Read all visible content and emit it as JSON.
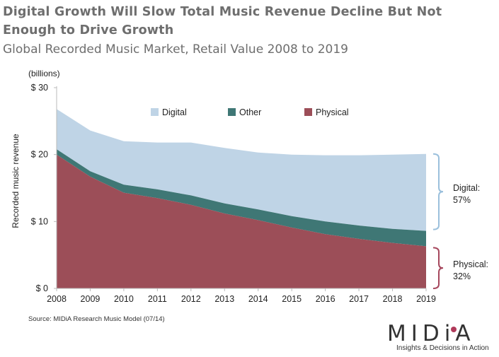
{
  "page": {
    "title": "Digital Growth Will Slow Total Music Revenue Decline But Not Enough to Drive Growth",
    "subtitle": "Global Recorded Music Market, Retail Value 2008 to 2019",
    "source": "Source: MIDiA Research Music Model (07/14)",
    "logo": "MIDiA",
    "tagline": "Insights & Decisions in Action"
  },
  "colors": {
    "digital": "#bfd4e6",
    "other": "#3f7775",
    "physical": "#9c4e58",
    "brace": "#9bc0dc",
    "brace_physical": "#a6475d",
    "logo_accent": "#b03a5a"
  },
  "annotations": {
    "digital_share": [
      "Digital:",
      "57%"
    ],
    "physical_share": [
      "Physical:",
      "32%"
    ]
  },
  "chart_data": {
    "type": "area",
    "stacked": true,
    "title": "Global Recorded Music Market, Retail Value 2008 to 2019",
    "ylabel": "Recorded music revenue",
    "yunit": "(billions)",
    "xlabel": "",
    "ylim": [
      0,
      30
    ],
    "yticks": [
      0,
      10,
      20,
      30
    ],
    "ytick_labels": [
      "$ 0",
      "$ 10",
      "$ 20",
      "$ 30"
    ],
    "legend_position": "top",
    "categories": [
      "2008",
      "2009",
      "2010",
      "2011",
      "2012",
      "2013",
      "2014",
      "2015",
      "2016",
      "2017",
      "2018",
      "2019"
    ],
    "series": [
      {
        "name": "Physical",
        "values": [
          20.0,
          16.7,
          14.3,
          13.5,
          12.5,
          11.2,
          10.2,
          9.1,
          8.1,
          7.4,
          6.8,
          6.3
        ]
      },
      {
        "name": "Other",
        "values": [
          0.8,
          0.8,
          1.2,
          1.3,
          1.4,
          1.5,
          1.6,
          1.7,
          1.9,
          2.0,
          2.1,
          2.3
        ]
      },
      {
        "name": "Digital",
        "values": [
          6.0,
          6.1,
          6.5,
          7.0,
          7.9,
          8.3,
          8.5,
          9.2,
          9.9,
          10.5,
          11.1,
          11.5
        ]
      }
    ],
    "legend": [
      "Digital",
      "Other",
      "Physical"
    ]
  }
}
